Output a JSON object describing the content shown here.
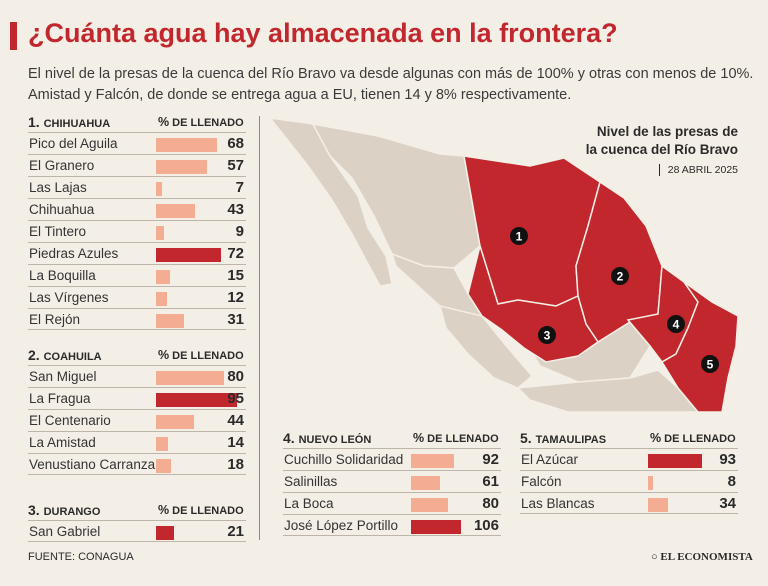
{
  "header": {
    "title": "¿Cuánta agua hay almacenada en la frontera?",
    "subtitle": "El nivel de la presas de la cuenca del Río Bravo va desde algunas con más de 100% y otras con menos de 10%. Amistad y Falcón, de donde se entrega agua a EU, tienen 14 y 8% respectivamente."
  },
  "map": {
    "title_line1": "Nivel de las presas de",
    "title_line2": "la cuenca del Río Bravo",
    "date": "28 ABRIL 2025",
    "markers": [
      "1",
      "2",
      "3",
      "4",
      "5"
    ]
  },
  "colors": {
    "low": "#f4ad92",
    "high": "#c1272d",
    "map_red": "#c1272d",
    "map_other": "#dcd1c5"
  },
  "chart_data": {
    "type": "bar",
    "title": "% de llenado de las presas de la cuenca del Río Bravo",
    "pct_label": "% DE LLENADO",
    "groups": [
      {
        "num": "1.",
        "name": "CHIHUAHUA",
        "dams": [
          {
            "name": "Pico del Aguila",
            "value": 68,
            "highlight": false
          },
          {
            "name": "El Granero",
            "value": 57,
            "highlight": false
          },
          {
            "name": "Las Lajas",
            "value": 7,
            "highlight": false
          },
          {
            "name": "Chihuahua",
            "value": 43,
            "highlight": false
          },
          {
            "name": "El Tintero",
            "value": 9,
            "highlight": false
          },
          {
            "name": "Piedras Azules",
            "value": 72,
            "highlight": true
          },
          {
            "name": "La Boquilla",
            "value": 15,
            "highlight": false
          },
          {
            "name": "Las Vírgenes",
            "value": 12,
            "highlight": false
          },
          {
            "name": "El Rejón",
            "value": 31,
            "highlight": false
          }
        ]
      },
      {
        "num": "2.",
        "name": "COAHUILA",
        "dams": [
          {
            "name": "San Miguel",
            "value": 80,
            "highlight": false
          },
          {
            "name": "La Fragua",
            "value": 95,
            "highlight": true
          },
          {
            "name": "El Centenario",
            "value": 44,
            "highlight": false
          },
          {
            "name": "La Amistad",
            "value": 14,
            "highlight": false
          },
          {
            "name": "Venustiano Carranza",
            "value": 18,
            "highlight": false
          }
        ]
      },
      {
        "num": "3.",
        "name": "DURANGO",
        "dams": [
          {
            "name": "San Gabriel",
            "value": 21,
            "highlight": true
          }
        ]
      },
      {
        "num": "4.",
        "name": "NUEVO LEÓN",
        "dams": [
          {
            "name": "Cuchillo Solidaridad",
            "value": 92,
            "highlight": false
          },
          {
            "name": "Salinillas",
            "value": 61,
            "highlight": false
          },
          {
            "name": "La Boca",
            "value": 80,
            "highlight": false
          },
          {
            "name": "José López Portillo",
            "value": 106,
            "highlight": true
          }
        ]
      },
      {
        "num": "5.",
        "name": "TAMAULIPAS",
        "dams": [
          {
            "name": "El Azúcar",
            "value": 93,
            "highlight": true
          },
          {
            "name": "Falcón",
            "value": 8,
            "highlight": false
          },
          {
            "name": "Las Blancas",
            "value": 34,
            "highlight": false
          }
        ]
      }
    ]
  },
  "footer": {
    "source": "FUENTE: CONAGUA",
    "logo": "EL ECONOMISTA"
  }
}
